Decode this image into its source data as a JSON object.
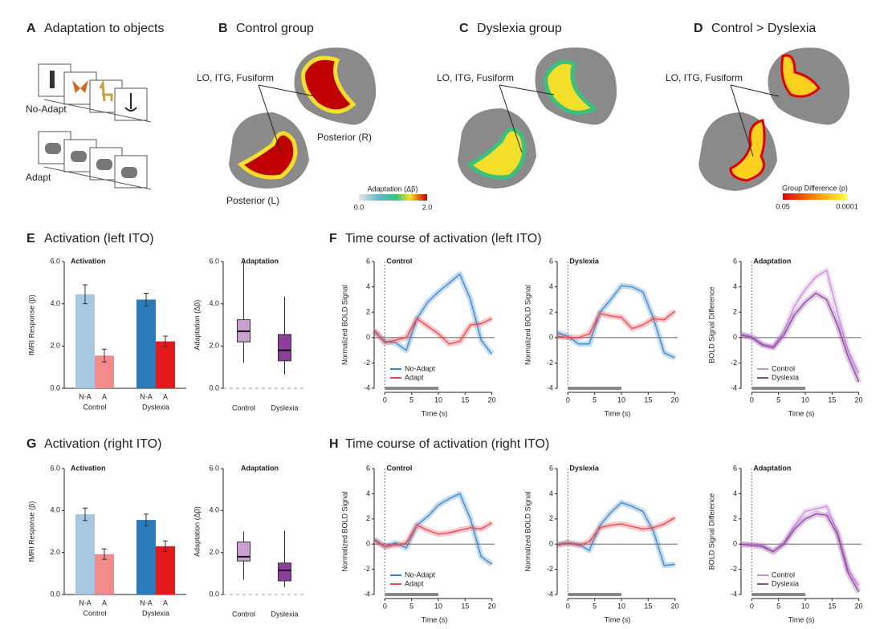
{
  "panel_a": {
    "label": "A",
    "title": "Adaptation to objects",
    "rows": [
      "No-Adapt",
      "Adapt"
    ]
  },
  "panel_b": {
    "label": "B",
    "title": "Control group",
    "annotations": [
      "LO, ITG, Fusiform",
      "Posterior (R)",
      "Posterior (L)"
    ],
    "colorbar": {
      "title": "Adaptation (Δβ)",
      "tick_labels": [
        "0.0",
        "2.0"
      ]
    }
  },
  "panel_c": {
    "label": "C",
    "title": "Dyslexia group",
    "annotations": [
      "LO, ITG, Fusiform"
    ]
  },
  "panel_d": {
    "label": "D",
    "title": "Control > Dyslexia",
    "annotations": [
      "LO, ITG, Fusiform"
    ],
    "colorbar": {
      "title": "Group Difference (p)",
      "tick_labels": [
        "0.05",
        "0.0001"
      ]
    }
  },
  "sections": [
    {
      "label": "E",
      "title": "Activation (left ITO)"
    },
    {
      "label": "F",
      "title": "Time course of activation (left ITO)"
    },
    {
      "label": "G",
      "title": "Activation (right ITO)"
    },
    {
      "label": "H",
      "title": "Time course of activation (right ITO)"
    }
  ],
  "chart_data": [
    {
      "type": "bar",
      "title": "Activation",
      "ylabel": "fMRI Response (β)",
      "categories": [
        "N-A",
        "A",
        "N-A",
        "A"
      ],
      "groups": [
        "Control",
        "Dyslexia"
      ],
      "values": [
        4.45,
        1.55,
        4.2,
        2.22
      ],
      "errors": [
        0.45,
        0.3,
        0.3,
        0.25
      ],
      "colors": [
        "#a6c8e3",
        "#f28c8c",
        "#2b7bba",
        "#e31a1c"
      ],
      "ylim": [
        0,
        6
      ],
      "yticks": [
        {
          "value": 0,
          "label": "0.0"
        },
        {
          "value": 2,
          "label": "2.0"
        },
        {
          "value": 4,
          "label": "4.0"
        },
        {
          "value": 6,
          "label": "6.0"
        }
      ]
    },
    {
      "type": "box",
      "title": "Adaptation",
      "ylabel": "Adaptation (Δβ)",
      "categories": [
        "Control",
        "Dyslexia"
      ],
      "boxes": [
        {
          "min": 1.2,
          "q1": 2.2,
          "median": 2.7,
          "q3": 3.25,
          "max": 6.0
        },
        {
          "min": 0.65,
          "q1": 1.3,
          "median": 1.8,
          "q3": 2.55,
          "max": 4.35
        }
      ],
      "colors": [
        "#c9a0d0",
        "#8b3f9b"
      ],
      "ylim": [
        0,
        6
      ],
      "yticks": [
        {
          "value": 0,
          "label": "0.0"
        },
        {
          "value": 2,
          "label": "2.0"
        },
        {
          "value": 4,
          "label": "4.0"
        },
        {
          "value": 6,
          "label": "6.0"
        }
      ]
    },
    {
      "type": "line",
      "title": "Control",
      "xlabel": "Time (s)",
      "ylabel": "Normalized BOLD Signal",
      "x": [
        -2,
        0,
        2,
        4,
        6,
        8,
        10,
        12,
        14,
        16,
        18,
        20
      ],
      "xlim": [
        -2,
        20.5
      ],
      "xticks": [
        0,
        5,
        10,
        15,
        20
      ],
      "ylim": [
        -4,
        6
      ],
      "yticks": [
        -4,
        -2,
        0,
        2,
        4,
        6
      ],
      "stimulus": [
        0,
        10
      ],
      "legend": true,
      "series": [
        {
          "name": "No-Adapt",
          "color": "#3a87c8",
          "values": [
            0.5,
            -0.3,
            -0.4,
            -1.0,
            1.5,
            2.8,
            3.6,
            4.3,
            5.0,
            3.0,
            -0.2,
            -1.3
          ]
        },
        {
          "name": "Adapt",
          "color": "#e8474e",
          "values": [
            0.6,
            -0.4,
            -0.2,
            0.0,
            1.5,
            0.9,
            0.3,
            -0.5,
            -0.3,
            1.0,
            1.1,
            1.5
          ]
        }
      ]
    },
    {
      "type": "line",
      "title": "Dyslexia",
      "xlabel": "Time (s)",
      "ylabel": "Normalized BOLD Signal",
      "x": [
        -2,
        0,
        2,
        4,
        6,
        8,
        10,
        12,
        14,
        16,
        18,
        20
      ],
      "xlim": [
        -2,
        20.5
      ],
      "xticks": [
        0,
        5,
        10,
        15,
        20
      ],
      "ylim": [
        -4,
        6
      ],
      "yticks": [
        -4,
        -2,
        0,
        2,
        4,
        6
      ],
      "stimulus": [
        0,
        10
      ],
      "legend": false,
      "series": [
        {
          "name": "No-Adapt",
          "color": "#3a87c8",
          "values": [
            0.4,
            0.1,
            -0.5,
            -0.5,
            2.0,
            3.0,
            4.1,
            4.0,
            3.6,
            1.5,
            -1.2,
            -1.6
          ]
        },
        {
          "name": "Adapt",
          "color": "#e8474e",
          "values": [
            0.1,
            0,
            0,
            0.3,
            1.9,
            1.7,
            1.6,
            0.7,
            1.0,
            1.5,
            1.4,
            2.1
          ]
        }
      ]
    },
    {
      "type": "line",
      "title": "Adaptation",
      "xlabel": "Time (s)",
      "ylabel": "BOLD Signal Difference",
      "x": [
        -2,
        0,
        2,
        4,
        6,
        8,
        10,
        12,
        14,
        16,
        18,
        20
      ],
      "xlim": [
        -2,
        20.5
      ],
      "xticks": [
        0,
        5,
        10,
        15,
        20
      ],
      "ylim": [
        -4,
        6
      ],
      "yticks": [
        -4,
        -2,
        0,
        2,
        4,
        6
      ],
      "stimulus": [
        0,
        10
      ],
      "legend": true,
      "series": [
        {
          "name": "Control",
          "color": "#c68fd6",
          "values": [
            0.3,
            0.1,
            -0.5,
            -0.7,
            0.5,
            2.5,
            3.8,
            4.8,
            5.3,
            2.0,
            -1.0,
            -2.8
          ]
        },
        {
          "name": "Dyslexia",
          "color": "#8e44a0",
          "values": [
            0.2,
            0,
            -0.6,
            -0.8,
            0.2,
            1.8,
            2.8,
            3.5,
            3.0,
            1.0,
            -1.5,
            -3.5
          ]
        }
      ]
    },
    {
      "type": "bar",
      "title": "Activation",
      "ylabel": "fMRI Response (β)",
      "categories": [
        "N-A",
        "A",
        "N-A",
        "A"
      ],
      "groups": [
        "Control",
        "Dyslexia"
      ],
      "values": [
        3.82,
        1.92,
        3.55,
        2.3
      ],
      "errors": [
        0.3,
        0.25,
        0.28,
        0.25
      ],
      "colors": [
        "#a6c8e3",
        "#f28c8c",
        "#2b7bba",
        "#e31a1c"
      ],
      "ylim": [
        0,
        6
      ],
      "yticks": [
        {
          "value": 0,
          "label": "0.0"
        },
        {
          "value": 2,
          "label": "2.0"
        },
        {
          "value": 4,
          "label": "4.0"
        },
        {
          "value": 6,
          "label": "6.0"
        }
      ]
    },
    {
      "type": "box",
      "title": "Adaptation",
      "ylabel": "Adaptation (Δβ)",
      "categories": [
        "Control",
        "Dyslexia"
      ],
      "boxes": [
        {
          "min": 0.7,
          "q1": 1.6,
          "median": 1.8,
          "q3": 2.5,
          "max": 3.0
        },
        {
          "min": 0.35,
          "q1": 0.65,
          "median": 1.15,
          "q3": 1.5,
          "max": 3.05
        }
      ],
      "colors": [
        "#c9a0d0",
        "#8b3f9b"
      ],
      "ylim": [
        0,
        6
      ],
      "yticks": [
        {
          "value": 0,
          "label": "0.0"
        },
        {
          "value": 2,
          "label": "2.0"
        },
        {
          "value": 4,
          "label": "4.0"
        },
        {
          "value": 6,
          "label": "6.0"
        }
      ]
    },
    {
      "type": "line",
      "title": "Control",
      "xlabel": "Time (s)",
      "ylabel": "Normalized BOLD Signal",
      "x": [
        -2,
        0,
        2,
        4,
        6,
        8,
        10,
        12,
        14,
        16,
        18,
        20
      ],
      "xlim": [
        -2,
        20.5
      ],
      "xticks": [
        0,
        5,
        10,
        15,
        20
      ],
      "ylim": [
        -4,
        6
      ],
      "yticks": [
        -4,
        -2,
        0,
        2,
        4,
        6
      ],
      "stimulus": [
        0,
        10
      ],
      "legend": true,
      "series": [
        {
          "name": "No-Adapt",
          "color": "#3a87c8",
          "values": [
            0.4,
            -0.2,
            0.1,
            -0.3,
            1.5,
            2.2,
            3.1,
            3.6,
            4.0,
            2.0,
            -1.0,
            -1.6
          ]
        },
        {
          "name": "Adapt",
          "color": "#e8474e",
          "values": [
            0.3,
            -0.2,
            -0.1,
            0.1,
            1.5,
            1.1,
            0.8,
            0.9,
            1.1,
            1.3,
            1.2,
            1.7
          ]
        }
      ]
    },
    {
      "type": "line",
      "title": "Dyslexia",
      "xlabel": "Time (s)",
      "ylabel": "Normalized BOLD Signal",
      "x": [
        -2,
        0,
        2,
        4,
        6,
        8,
        10,
        12,
        14,
        16,
        18,
        20
      ],
      "xlim": [
        -2,
        20.5
      ],
      "xticks": [
        0,
        5,
        10,
        15,
        20
      ],
      "ylim": [
        -4,
        6
      ],
      "yticks": [
        -4,
        -2,
        0,
        2,
        4,
        6
      ],
      "stimulus": [
        0,
        10
      ],
      "legend": false,
      "series": [
        {
          "name": "No-Adapt",
          "color": "#3a87c8",
          "values": [
            0,
            0.1,
            0,
            -0.5,
            1.5,
            2.5,
            3.3,
            3.0,
            2.6,
            1.0,
            -1.7,
            -1.6
          ]
        },
        {
          "name": "Adapt",
          "color": "#e8474e",
          "values": [
            -0.1,
            0.1,
            -0.1,
            0.2,
            1.3,
            1.5,
            1.6,
            1.4,
            1.2,
            1.3,
            1.6,
            2.1
          ]
        }
      ]
    },
    {
      "type": "line",
      "title": "Adaptation",
      "xlabel": "Time (s)",
      "ylabel": "BOLD Signal Difference",
      "x": [
        -2,
        0,
        2,
        4,
        6,
        8,
        10,
        12,
        14,
        16,
        18,
        20
      ],
      "xlim": [
        -2,
        20.5
      ],
      "xticks": [
        0,
        5,
        10,
        15,
        20
      ],
      "ylim": [
        -4,
        6
      ],
      "yticks": [
        -4,
        -2,
        0,
        2,
        4,
        6
      ],
      "stimulus": [
        0,
        10
      ],
      "legend": true,
      "series": [
        {
          "name": "Control",
          "color": "#c68fd6",
          "values": [
            0,
            0,
            -0.1,
            -0.6,
            0.1,
            1.5,
            2.6,
            2.8,
            3.0,
            1.0,
            -2.0,
            -3.3
          ]
        },
        {
          "name": "Dyslexia",
          "color": "#8e44a0",
          "values": [
            0,
            -0.1,
            -0.2,
            -0.6,
            0.0,
            1.2,
            2.0,
            2.4,
            2.3,
            0.8,
            -2.3,
            -3.8
          ]
        }
      ]
    }
  ]
}
